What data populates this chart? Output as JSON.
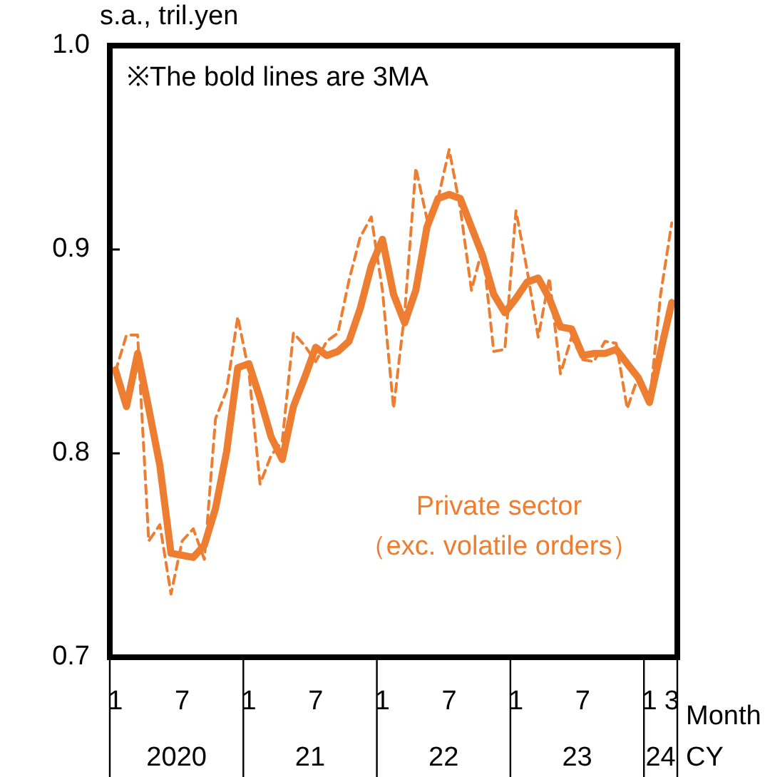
{
  "chart_data": {
    "type": "line",
    "ylabel": "s.a., tril.yen",
    "categories": [
      "1",
      null,
      null,
      null,
      null,
      null,
      "7",
      null,
      null,
      null,
      null,
      null,
      "1",
      null,
      null,
      null,
      null,
      null,
      "7",
      null,
      null,
      null,
      null,
      null,
      "1",
      null,
      null,
      null,
      null,
      null,
      "7",
      null,
      null,
      null,
      null,
      null,
      "1",
      null,
      null,
      null,
      null,
      null,
      "7",
      null,
      null,
      null,
      null,
      null,
      "1",
      null,
      "3"
    ],
    "series": [
      {
        "color": "#ed7d31",
        "line_style": "dashed",
        "values": [
          0.84,
          0.858,
          0.858,
          0.757,
          0.765,
          0.731,
          0.757,
          0.763,
          0.748,
          0.817,
          0.831,
          0.867,
          0.84,
          0.785,
          0.799,
          0.806,
          0.859,
          0.853,
          0.845,
          0.855,
          0.859,
          0.885,
          0.906,
          0.916,
          0.88,
          0.822,
          0.869,
          0.94,
          0.915,
          0.925,
          0.949,
          0.92,
          0.88,
          0.901,
          0.85,
          0.851,
          0.919,
          0.89,
          0.857,
          0.886,
          0.839,
          0.857,
          0.846,
          0.845,
          0.855,
          0.854,
          0.822,
          0.838,
          0.824,
          0.878,
          0.913
        ]
      },
      {
        "color": "#ed7d31",
        "line_style": "solid",
        "values": [
          0.841,
          0.823,
          0.849,
          0.822,
          0.794,
          0.751,
          0.75,
          0.749,
          0.755,
          0.773,
          0.801,
          0.842,
          0.844,
          0.827,
          0.808,
          0.797,
          0.823,
          0.837,
          0.852,
          0.848,
          0.85,
          0.855,
          0.871,
          0.892,
          0.905,
          0.878,
          0.864,
          0.88,
          0.911,
          0.925,
          0.927,
          0.925,
          0.911,
          0.897,
          0.878,
          0.869,
          0.876,
          0.884,
          0.886,
          0.876,
          0.862,
          0.861,
          0.848,
          0.849,
          0.849,
          0.851,
          0.844,
          0.837,
          0.825,
          0.85,
          0.874
        ]
      }
    ],
    "ylim": [
      0.7,
      1.0
    ],
    "yticks": [
      0.7,
      0.8,
      0.9,
      {
        "value": 1,
        "label": "1.0"
      }
    ],
    "grid": false,
    "legend": false,
    "marker": "none",
    "annotations": [
      "※The bold lines are 3MA",
      "Private sector\n（exc. volatile orders）",
      "2020",
      "21",
      "22",
      "23",
      "24",
      "Month",
      "CY"
    ]
  }
}
